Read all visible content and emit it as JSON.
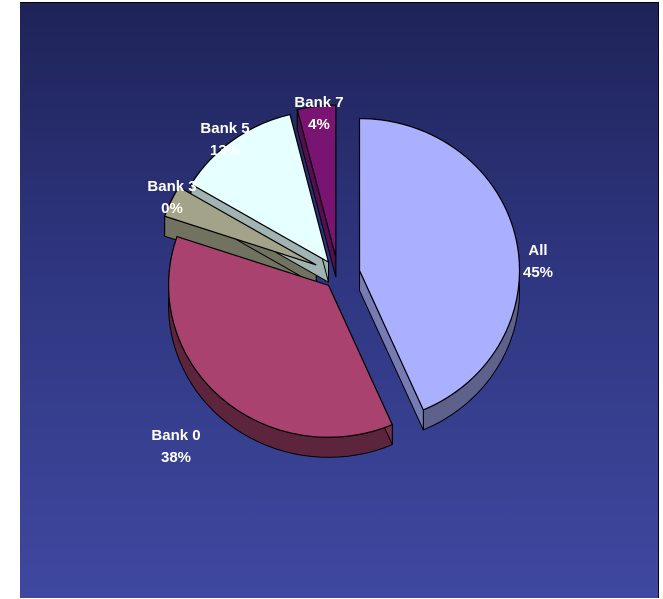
{
  "chart_data": {
    "type": "pie",
    "style": "3d-exploded",
    "categories": [
      "All",
      "Bank 0",
      "Bank 3",
      "Bank 5",
      "Bank 7"
    ],
    "values": [
      45,
      38,
      0,
      13,
      4
    ],
    "labels": [
      {
        "name": "All",
        "pct": "45%"
      },
      {
        "name": "Bank 0",
        "pct": "38%"
      },
      {
        "name": "Bank 3",
        "pct": "0%"
      },
      {
        "name": "Bank 5",
        "pct": "13%"
      },
      {
        "name": "Bank 7",
        "pct": "4%"
      }
    ],
    "colors": [
      "#aab0ff",
      "#a9426f",
      "#a3a38a",
      "#e6ffff",
      "#7a1473"
    ],
    "background": [
      "#1e2358",
      "#3f48a0"
    ],
    "legend": "none",
    "title": ""
  }
}
